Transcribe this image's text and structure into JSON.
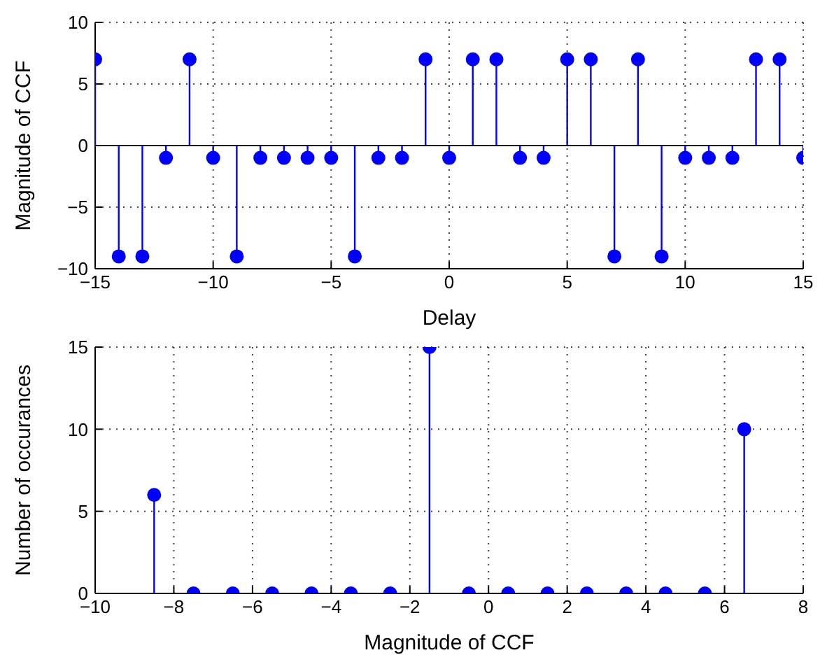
{
  "chart_data": [
    {
      "type": "lollipop",
      "xlabel": "Delay",
      "ylabel": "Magnitude of CCF",
      "x": [
        -15,
        -14,
        -13,
        -12,
        -11,
        -10,
        -9,
        -8,
        -7,
        -6,
        -5,
        -4,
        -3,
        -2,
        -1,
        0,
        1,
        2,
        3,
        4,
        5,
        6,
        7,
        8,
        9,
        10,
        11,
        12,
        13,
        14,
        15
      ],
      "values": [
        7,
        -9,
        -9,
        -1,
        7,
        -1,
        -9,
        -1,
        -1,
        -1,
        -1,
        -9,
        -1,
        -1,
        7,
        -1,
        7,
        7,
        -1,
        -1,
        7,
        7,
        -9,
        7,
        -9,
        -1,
        -1,
        -1,
        7,
        7,
        -1
      ],
      "color": "#0000ff",
      "xlim": [
        -15,
        15
      ],
      "xticks": [
        -15,
        -10,
        -5,
        0,
        5,
        10,
        15
      ],
      "ylim": [
        -10,
        10
      ],
      "yticks": [
        -10,
        -5,
        0,
        5,
        10
      ],
      "grid": true,
      "marker": "circle"
    },
    {
      "type": "lollipop",
      "xlabel": "Magnitude of CCF",
      "ylabel": "Number of occurances",
      "x": [
        -8.5,
        -7.5,
        -6.5,
        -5.5,
        -4.5,
        -3.5,
        -2.5,
        -1.5,
        -0.5,
        0.5,
        1.5,
        2.5,
        3.5,
        4.5,
        5.5,
        6.5
      ],
      "values": [
        6,
        0,
        0,
        0,
        0,
        0,
        0,
        15,
        0,
        0,
        0,
        0,
        0,
        0,
        0,
        10
      ],
      "color": "#0000ff",
      "xlim": [
        -10,
        8
      ],
      "xticks": [
        -10,
        -8,
        -6,
        -4,
        -2,
        0,
        2,
        4,
        6,
        8
      ],
      "ylim": [
        0,
        15
      ],
      "yticks": [
        0,
        5,
        10,
        15
      ],
      "grid": true,
      "marker": "circle"
    }
  ]
}
